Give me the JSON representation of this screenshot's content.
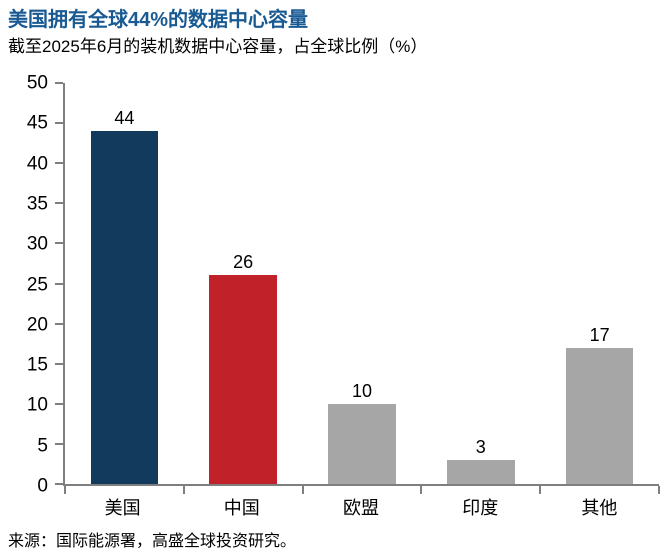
{
  "header": {
    "title": "美国拥有全球44%的数据中心容量",
    "subtitle": "截至2025年6月的装机数据中心容量，占全球比例（%）"
  },
  "chart_data": {
    "type": "bar",
    "title": "美国拥有全球44%的数据中心容量",
    "subtitle": "截至2025年6月的装机数据中心容量，占全球比例（%）",
    "categories": [
      "美国",
      "中国",
      "欧盟",
      "印度",
      "其他"
    ],
    "values": [
      44,
      26,
      10,
      3,
      17
    ],
    "bar_colors": [
      "#113a5c",
      "#c1222a",
      "#a6a6a6",
      "#a6a6a6",
      "#a6a6a6"
    ],
    "xlabel": "",
    "ylabel": "",
    "ylim": [
      0,
      50
    ],
    "yticks": [
      0,
      5,
      10,
      15,
      20,
      25,
      30,
      35,
      40,
      45,
      50
    ],
    "grid": false,
    "legend": false,
    "value_labels": true
  },
  "footer": {
    "source": "来源：国际能源署，高盛全球投资研究。"
  },
  "colors": {
    "title_blue": "#195a92",
    "bar_navy": "#113a5c",
    "bar_red": "#c1222a",
    "bar_gray": "#a6a6a6",
    "axis_gray": "#7f7f7f"
  }
}
